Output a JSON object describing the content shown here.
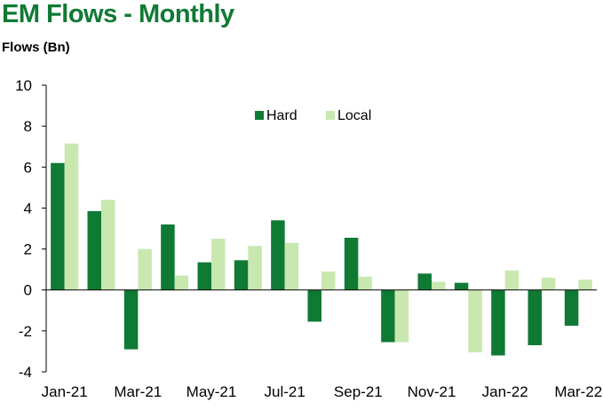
{
  "header": {
    "title": "EM Flows - Monthly",
    "subtitle": "Flows (Bn)"
  },
  "chart_data": {
    "type": "bar",
    "title": "EM Flows - Monthly",
    "ylabel": "Flows (Bn)",
    "xlabel": "",
    "ylim": [
      -4,
      10
    ],
    "yticks": [
      -4,
      -2,
      0,
      2,
      4,
      6,
      8,
      10
    ],
    "categories": [
      "Jan-21",
      "Feb-21",
      "Mar-21",
      "Apr-21",
      "May-21",
      "Jun-21",
      "Jul-21",
      "Aug-21",
      "Sep-21",
      "Oct-21",
      "Nov-21",
      "Dec-21",
      "Jan-22",
      "Feb-22",
      "Mar-22"
    ],
    "xtick_labels": [
      "Jan-21",
      "",
      "Mar-21",
      "",
      "May-21",
      "",
      "Jul-21",
      "",
      "Sep-21",
      "",
      "Nov-21",
      "",
      "Jan-22",
      "",
      "Mar-22"
    ],
    "series": [
      {
        "name": "Hard",
        "color": "#0f7a34",
        "values": [
          6.2,
          3.85,
          -2.9,
          3.2,
          1.35,
          1.45,
          3.4,
          -1.55,
          2.55,
          -2.55,
          0.8,
          0.35,
          -3.2,
          -2.7,
          -1.75
        ]
      },
      {
        "name": "Local",
        "color": "#c8e8b0",
        "values": [
          7.15,
          4.4,
          2.0,
          0.7,
          2.5,
          2.15,
          2.3,
          0.9,
          0.65,
          -2.55,
          0.4,
          -3.05,
          0.95,
          0.6,
          0.5
        ]
      }
    ],
    "legend_position": "top-center",
    "grid": false
  }
}
